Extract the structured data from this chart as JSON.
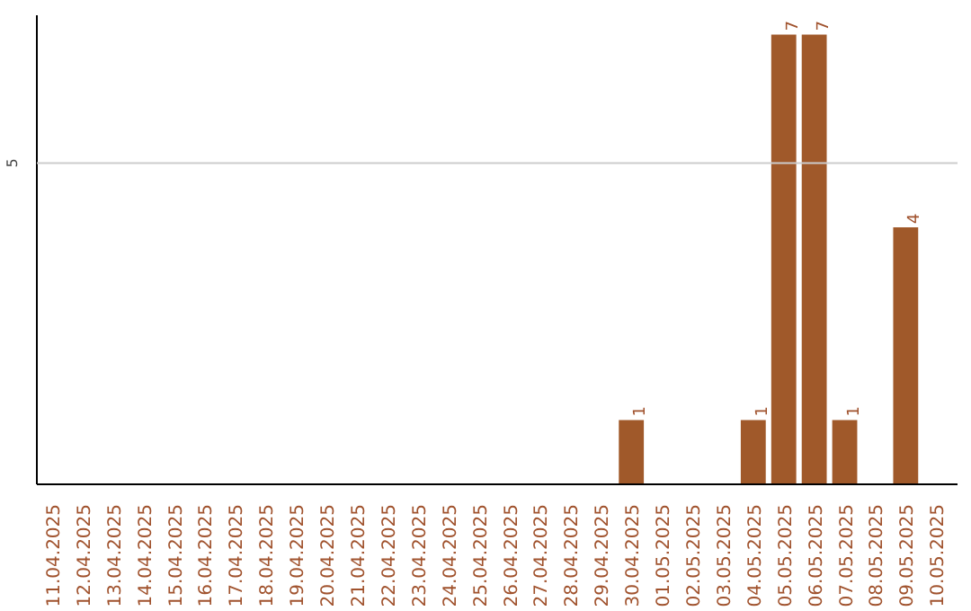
{
  "chart_data": {
    "type": "bar",
    "categories": [
      "11.04.2025",
      "12.04.2025",
      "13.04.2025",
      "14.04.2025",
      "15.04.2025",
      "16.04.2025",
      "17.04.2025",
      "18.04.2025",
      "19.04.2025",
      "20.04.2025",
      "21.04.2025",
      "22.04.2025",
      "23.04.2025",
      "24.04.2025",
      "25.04.2025",
      "26.04.2025",
      "27.04.2025",
      "28.04.2025",
      "29.04.2025",
      "30.04.2025",
      "01.05.2025",
      "02.05.2025",
      "03.05.2025",
      "04.05.2025",
      "05.05.2025",
      "06.05.2025",
      "07.05.2025",
      "08.05.2025",
      "09.05.2025",
      "10.05.2025"
    ],
    "values": [
      null,
      null,
      null,
      null,
      null,
      null,
      null,
      null,
      null,
      null,
      null,
      null,
      null,
      null,
      null,
      null,
      null,
      null,
      null,
      1,
      null,
      null,
      null,
      1,
      7,
      7,
      1,
      null,
      4,
      null
    ],
    "data_labels": true,
    "color": "#a0592a",
    "ylim": [
      0,
      7.3
    ],
    "ref_lines": [
      {
        "axis": "y",
        "value": 5,
        "label": "5",
        "color": "#cccccc"
      }
    ]
  }
}
